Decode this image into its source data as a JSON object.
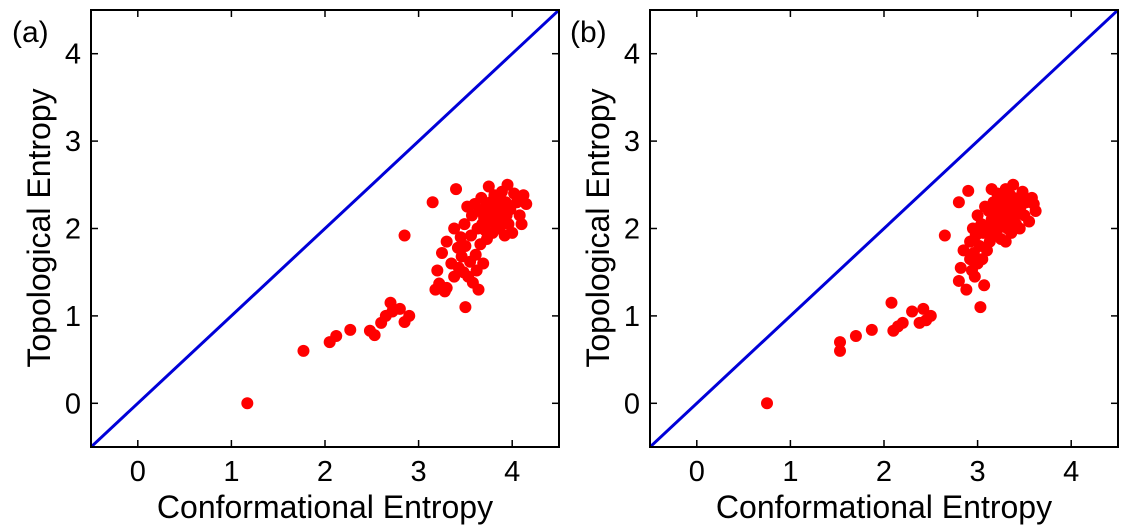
{
  "colors": {
    "points": "#ff0000",
    "reference_line": "#0000d8",
    "axes": "#000000"
  },
  "chart_data": [
    {
      "type": "scatter",
      "panel_label": "(a)",
      "xlabel": "Conformational Entropy",
      "ylabel": "Topological Entropy",
      "xlim": [
        -0.5,
        4.5
      ],
      "ylim": [
        -0.5,
        4.5
      ],
      "xticks": [
        0,
        1,
        2,
        3,
        4
      ],
      "yticks": [
        0,
        1,
        2,
        3,
        4
      ],
      "reference_line": {
        "type": "y=x"
      },
      "points": [
        [
          1.17,
          0.0
        ],
        [
          1.77,
          0.6
        ],
        [
          2.05,
          0.7
        ],
        [
          2.12,
          0.77
        ],
        [
          2.27,
          0.84
        ],
        [
          2.48,
          0.83
        ],
        [
          2.53,
          0.78
        ],
        [
          2.6,
          0.92
        ],
        [
          2.65,
          1.0
        ],
        [
          2.7,
          1.15
        ],
        [
          2.72,
          1.05
        ],
        [
          2.8,
          1.08
        ],
        [
          2.85,
          0.93
        ],
        [
          2.9,
          1.0
        ],
        [
          2.85,
          1.92
        ],
        [
          3.15,
          2.3
        ],
        [
          3.18,
          1.3
        ],
        [
          3.2,
          1.52
        ],
        [
          3.22,
          1.37
        ],
        [
          3.25,
          1.72
        ],
        [
          3.28,
          1.28
        ],
        [
          3.3,
          1.85
        ],
        [
          3.3,
          1.32
        ],
        [
          3.35,
          1.6
        ],
        [
          3.38,
          1.45
        ],
        [
          3.38,
          2.0
        ],
        [
          3.4,
          2.45
        ],
        [
          3.42,
          1.78
        ],
        [
          3.43,
          1.55
        ],
        [
          3.45,
          1.9
        ],
        [
          3.46,
          1.68
        ],
        [
          3.48,
          1.5
        ],
        [
          3.49,
          2.05
        ],
        [
          3.5,
          1.1
        ],
        [
          3.5,
          1.8
        ],
        [
          3.52,
          2.25
        ],
        [
          3.53,
          1.45
        ],
        [
          3.55,
          1.62
        ],
        [
          3.56,
          1.92
        ],
        [
          3.57,
          2.15
        ],
        [
          3.58,
          1.38
        ],
        [
          3.6,
          2.28
        ],
        [
          3.61,
          1.7
        ],
        [
          3.62,
          1.52
        ],
        [
          3.63,
          2.0
        ],
        [
          3.64,
          1.3
        ],
        [
          3.65,
          2.2
        ],
        [
          3.66,
          1.82
        ],
        [
          3.67,
          2.35
        ],
        [
          3.68,
          2.05
        ],
        [
          3.69,
          1.6
        ],
        [
          3.7,
          2.12
        ],
        [
          3.71,
          1.98
        ],
        [
          3.72,
          2.25
        ],
        [
          3.73,
          1.88
        ],
        [
          3.74,
          2.18
        ],
        [
          3.75,
          2.48
        ],
        [
          3.76,
          2.08
        ],
        [
          3.77,
          2.3
        ],
        [
          3.78,
          2.15
        ],
        [
          3.79,
          1.95
        ],
        [
          3.8,
          2.22
        ],
        [
          3.81,
          2.38
        ],
        [
          3.82,
          2.05
        ],
        [
          3.83,
          2.28
        ],
        [
          3.84,
          2.12
        ],
        [
          3.85,
          2.2
        ],
        [
          3.86,
          2.0
        ],
        [
          3.87,
          2.35
        ],
        [
          3.88,
          2.18
        ],
        [
          3.89,
          2.42
        ],
        [
          3.9,
          2.25
        ],
        [
          3.91,
          2.1
        ],
        [
          3.92,
          1.92
        ],
        [
          3.93,
          2.3
        ],
        [
          3.94,
          2.15
        ],
        [
          3.95,
          2.5
        ],
        [
          3.96,
          2.05
        ],
        [
          3.98,
          2.22
        ],
        [
          4.0,
          1.95
        ],
        [
          4.02,
          2.4
        ],
        [
          4.05,
          2.3
        ],
        [
          4.08,
          2.15
        ],
        [
          4.1,
          2.05
        ],
        [
          4.12,
          2.38
        ],
        [
          4.15,
          2.28
        ]
      ]
    },
    {
      "type": "scatter",
      "panel_label": "(b)",
      "xlabel": "Conformational Entropy",
      "ylabel": "Topological Entropy",
      "xlim": [
        -0.5,
        4.5
      ],
      "ylim": [
        -0.5,
        4.5
      ],
      "xticks": [
        0,
        1,
        2,
        3,
        4
      ],
      "yticks": [
        0,
        1,
        2,
        3,
        4
      ],
      "reference_line": {
        "type": "y=x"
      },
      "points": [
        [
          0.75,
          0.0
        ],
        [
          1.53,
          0.6
        ],
        [
          1.53,
          0.7
        ],
        [
          1.7,
          0.77
        ],
        [
          1.87,
          0.84
        ],
        [
          2.08,
          1.15
        ],
        [
          2.1,
          0.83
        ],
        [
          2.15,
          0.88
        ],
        [
          2.2,
          0.92
        ],
        [
          2.3,
          1.05
        ],
        [
          2.38,
          0.92
        ],
        [
          2.42,
          1.08
        ],
        [
          2.45,
          0.95
        ],
        [
          2.5,
          1.0
        ],
        [
          2.65,
          1.92
        ],
        [
          2.8,
          2.3
        ],
        [
          2.8,
          1.4
        ],
        [
          2.82,
          1.55
        ],
        [
          2.85,
          1.75
        ],
        [
          2.88,
          1.3
        ],
        [
          2.9,
          2.43
        ],
        [
          2.92,
          1.65
        ],
        [
          2.92,
          1.85
        ],
        [
          2.94,
          1.52
        ],
        [
          2.95,
          2.0
        ],
        [
          2.96,
          1.72
        ],
        [
          2.97,
          1.45
        ],
        [
          2.98,
          1.92
        ],
        [
          3.0,
          1.6
        ],
        [
          3.0,
          2.15
        ],
        [
          3.02,
          1.8
        ],
        [
          3.03,
          1.1
        ],
        [
          3.04,
          2.05
        ],
        [
          3.05,
          1.65
        ],
        [
          3.06,
          1.95
        ],
        [
          3.07,
          1.35
        ],
        [
          3.08,
          2.25
        ],
        [
          3.1,
          1.75
        ],
        [
          3.1,
          2.0
        ],
        [
          3.12,
          2.2
        ],
        [
          3.13,
          1.85
        ],
        [
          3.15,
          2.1
        ],
        [
          3.16,
          1.92
        ],
        [
          3.17,
          2.3
        ],
        [
          3.18,
          2.05
        ],
        [
          3.2,
          2.15
        ],
        [
          3.21,
          2.4
        ],
        [
          3.22,
          2.0
        ],
        [
          3.23,
          2.25
        ],
        [
          3.24,
          2.12
        ],
        [
          3.25,
          1.88
        ],
        [
          3.26,
          2.35
        ],
        [
          3.27,
          2.2
        ],
        [
          3.28,
          2.05
        ],
        [
          3.29,
          2.3
        ],
        [
          3.3,
          2.45
        ],
        [
          3.31,
          2.15
        ],
        [
          3.32,
          2.0
        ],
        [
          3.33,
          2.28
        ],
        [
          3.34,
          2.1
        ],
        [
          3.35,
          2.38
        ],
        [
          3.36,
          1.95
        ],
        [
          3.37,
          2.22
        ],
        [
          3.38,
          2.5
        ],
        [
          3.39,
          2.12
        ],
        [
          3.4,
          2.3
        ],
        [
          3.41,
          2.05
        ],
        [
          3.42,
          2.18
        ],
        [
          3.44,
          2.35
        ],
        [
          3.45,
          2.0
        ],
        [
          3.46,
          2.25
        ],
        [
          3.48,
          2.42
        ],
        [
          3.5,
          2.15
        ],
        [
          3.52,
          2.3
        ],
        [
          3.55,
          2.08
        ],
        [
          3.58,
          2.35
        ],
        [
          3.6,
          2.28
        ],
        [
          3.62,
          2.2
        ],
        [
          3.3,
          1.85
        ],
        [
          3.15,
          2.45
        ]
      ]
    }
  ]
}
